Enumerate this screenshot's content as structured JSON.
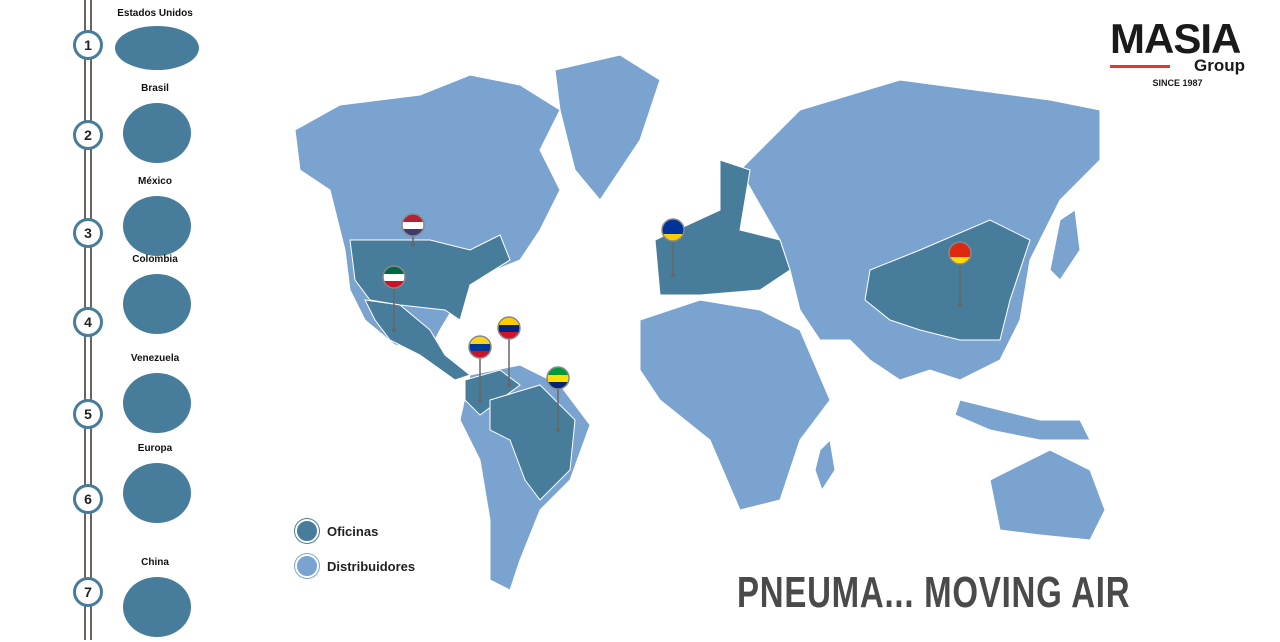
{
  "logo": {
    "brand": "MASIA",
    "sub": "Group",
    "since": "SINCE 1987",
    "accent": "#e03a2f"
  },
  "colors": {
    "offices": "#477d9b",
    "distributors": "#7ba3cf"
  },
  "sidebar": {
    "items": [
      {
        "number": "1",
        "label": "Estados Unidos"
      },
      {
        "number": "2",
        "label": "Brasil"
      },
      {
        "number": "3",
        "label": "México"
      },
      {
        "number": "4",
        "label": "Colombia"
      },
      {
        "number": "5",
        "label": "Venezuela"
      },
      {
        "number": "6",
        "label": "Europa"
      },
      {
        "number": "7",
        "label": "China"
      }
    ]
  },
  "legend": {
    "offices": "Oficinas",
    "distributors": "Distribuidores"
  },
  "pins": [
    {
      "flag": "usa-flag"
    },
    {
      "flag": "mexico-flag"
    },
    {
      "flag": "colombia-flag"
    },
    {
      "flag": "venezuela-flag"
    },
    {
      "flag": "brazil-flag"
    },
    {
      "flag": "eu-flag"
    },
    {
      "flag": "china-flag"
    }
  ],
  "slogan": "PNEUMA... MOVING AIR"
}
